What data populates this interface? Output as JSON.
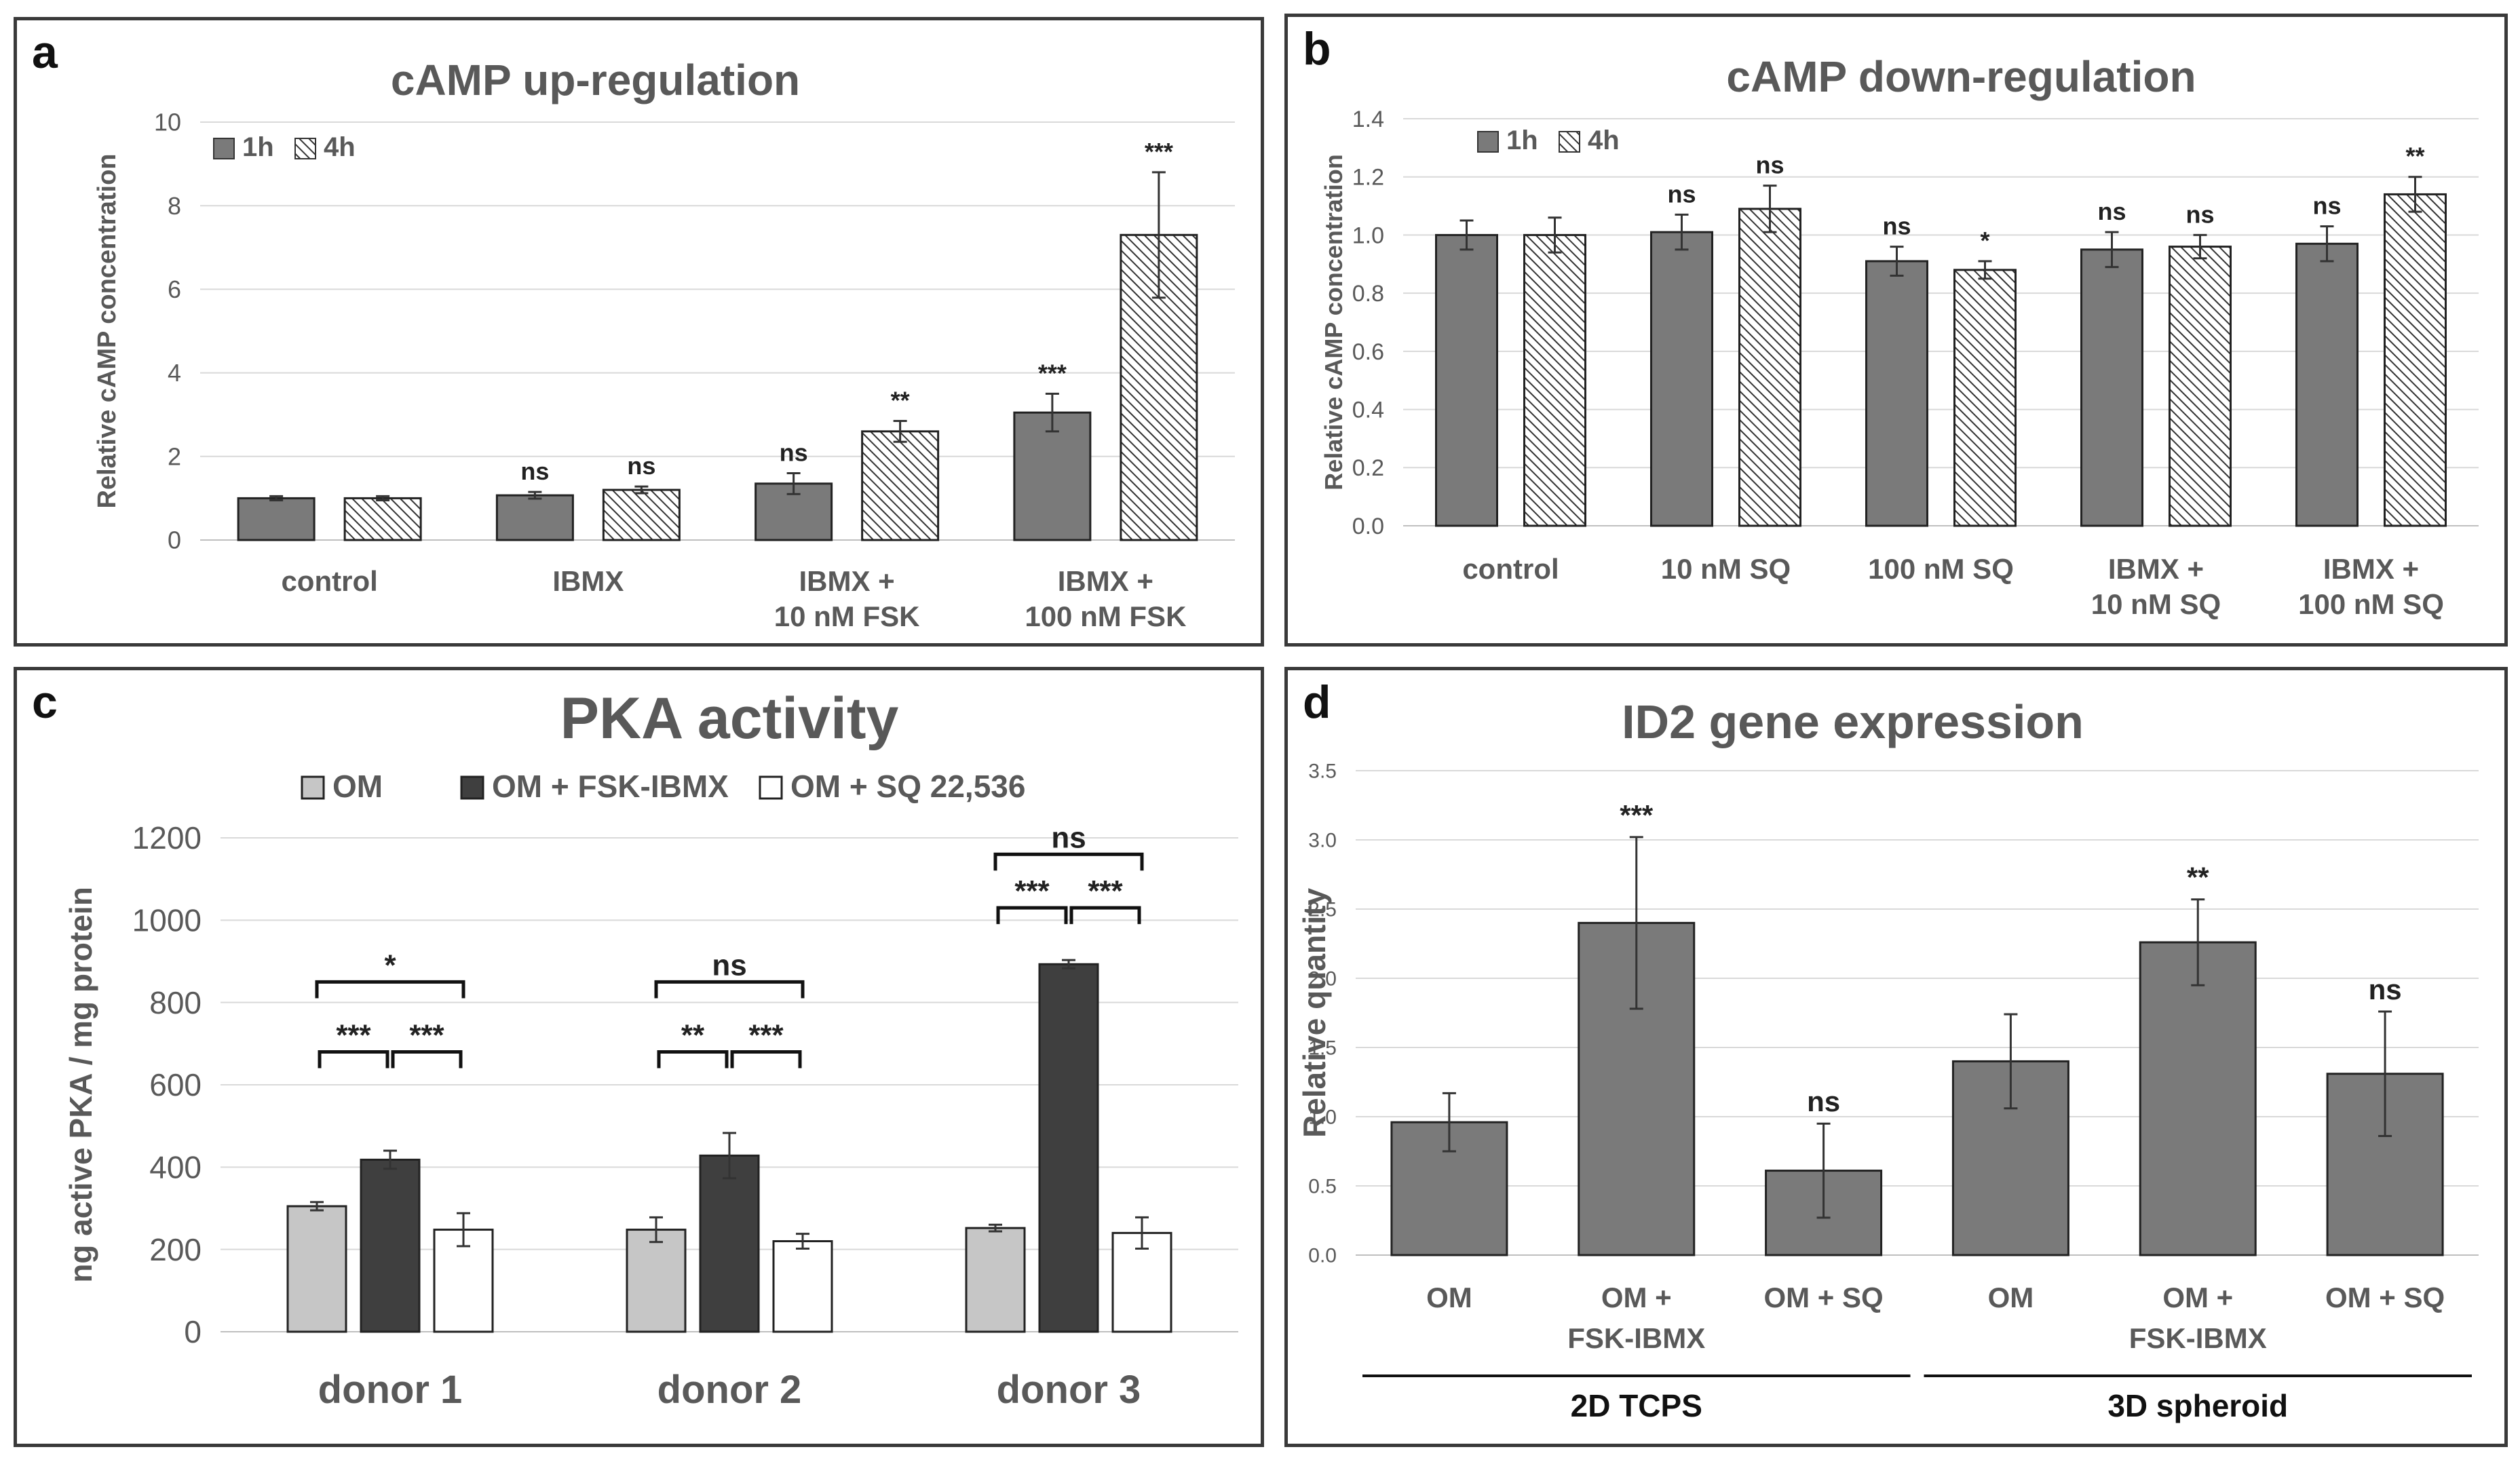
{
  "colors": {
    "bar_gray": "#7a7a7a",
    "bar_light": "#c6c6c6",
    "bar_dark": "#3f3f3f",
    "bar_white": "#ffffff",
    "axis_text": "#595959",
    "grid": "#d9d9d9"
  },
  "chart_data": [
    {
      "panel": "a",
      "type": "bar",
      "title": "cAMP up-regulation",
      "ylabel": "Relative cAMP concentration",
      "xlabel": "",
      "ylim": [
        0,
        10
      ],
      "yticks": [
        "0",
        "2",
        "4",
        "6",
        "8",
        "10"
      ],
      "legend": [
        "1h",
        "4h"
      ],
      "categories": [
        [
          "control"
        ],
        [
          "IBMX"
        ],
        [
          "IBMX +",
          "10 nM FSK"
        ],
        [
          "IBMX +",
          "100 nM FSK"
        ]
      ],
      "series": [
        {
          "name": "1h",
          "values": [
            1.0,
            1.07,
            1.35,
            3.05
          ],
          "errors": [
            0.05,
            0.08,
            0.25,
            0.45
          ],
          "labels": [
            "",
            "ns",
            "ns",
            "***"
          ]
        },
        {
          "name": "4h",
          "values": [
            1.0,
            1.2,
            2.6,
            7.3
          ],
          "errors": [
            0.05,
            0.08,
            0.25,
            1.5
          ],
          "labels": [
            "",
            "ns",
            "**",
            "***"
          ]
        }
      ]
    },
    {
      "panel": "b",
      "type": "bar",
      "title": "cAMP down-regulation",
      "ylabel": "Relative cAMP concentration",
      "xlabel": "",
      "ylim": [
        0,
        1.4
      ],
      "yticks": [
        "0.0",
        "0.2",
        "0.4",
        "0.6",
        "0.8",
        "1.0",
        "1.2",
        "1.4"
      ],
      "legend": [
        "1h",
        "4h"
      ],
      "categories": [
        [
          "control"
        ],
        [
          "10 nM SQ"
        ],
        [
          "100 nM SQ"
        ],
        [
          "IBMX +",
          "10 nM SQ"
        ],
        [
          "IBMX +",
          "100 nM SQ"
        ]
      ],
      "series": [
        {
          "name": "1h",
          "values": [
            1.0,
            1.01,
            0.91,
            0.95,
            0.97
          ],
          "errors": [
            0.05,
            0.06,
            0.05,
            0.06,
            0.06
          ],
          "labels": [
            "",
            "ns",
            "ns",
            "ns",
            "ns"
          ]
        },
        {
          "name": "4h",
          "values": [
            1.0,
            1.09,
            0.88,
            0.96,
            1.14
          ],
          "errors": [
            0.06,
            0.08,
            0.03,
            0.04,
            0.06
          ],
          "labels": [
            "",
            "ns",
            "*",
            "ns",
            "**"
          ]
        }
      ]
    },
    {
      "panel": "c",
      "type": "bar",
      "title": "PKA activity",
      "ylabel": "ng active PKA / mg protein",
      "xlabel": "",
      "ylim": [
        0,
        1200
      ],
      "yticks": [
        "0",
        "200",
        "400",
        "600",
        "800",
        "1000",
        "1200"
      ],
      "legend": [
        "OM",
        "OM + FSK-IBMX",
        "OM + SQ 22,536"
      ],
      "categories": [
        [
          "donor 1"
        ],
        [
          "donor 2"
        ],
        [
          "donor 3"
        ]
      ],
      "series": [
        {
          "name": "OM",
          "values": [
            305,
            248,
            252
          ],
          "errors": [
            10,
            30,
            8
          ]
        },
        {
          "name": "OM + FSK-IBMX",
          "values": [
            418,
            428,
            893
          ],
          "errors": [
            22,
            55,
            10
          ]
        },
        {
          "name": "OM + SQ 22,536",
          "values": [
            248,
            220,
            240
          ],
          "errors": [
            40,
            18,
            38
          ]
        }
      ],
      "brackets": [
        {
          "group": 0,
          "pairs": [
            {
              "from": 0,
              "to": 1,
              "label": "***",
              "y": 680
            },
            {
              "from": 1,
              "to": 2,
              "label": "***",
              "y": 680
            },
            {
              "from": 0,
              "to": 2,
              "label": "*",
              "y": 850
            }
          ]
        },
        {
          "group": 1,
          "pairs": [
            {
              "from": 0,
              "to": 1,
              "label": "**",
              "y": 680
            },
            {
              "from": 1,
              "to": 2,
              "label": "***",
              "y": 680
            },
            {
              "from": 0,
              "to": 2,
              "label": "ns",
              "y": 850
            }
          ]
        },
        {
          "group": 2,
          "pairs": [
            {
              "from": 0,
              "to": 1,
              "label": "***",
              "y": 1030
            },
            {
              "from": 1,
              "to": 2,
              "label": "***",
              "y": 1030
            },
            {
              "from": 0,
              "to": 2,
              "label": "ns",
              "y": 1160
            }
          ]
        }
      ]
    },
    {
      "panel": "d",
      "type": "bar",
      "title": "ID2 gene expression",
      "ylabel": "Relative quantity",
      "xlabel": "",
      "ylim": [
        0,
        3.5
      ],
      "yticks": [
        "0.0",
        "0.5",
        "1.0",
        "1.5",
        "2.0",
        "2.5",
        "3.0",
        "3.5"
      ],
      "categories": [
        [
          "OM"
        ],
        [
          "OM +",
          "FSK-IBMX"
        ],
        [
          "OM + SQ"
        ],
        [
          "OM"
        ],
        [
          "OM +",
          "FSK-IBMX"
        ],
        [
          "OM + SQ"
        ]
      ],
      "values": [
        0.96,
        2.4,
        0.61,
        1.4,
        2.26,
        1.31
      ],
      "errors": [
        0.21,
        0.62,
        0.34,
        0.34,
        0.31,
        0.45
      ],
      "labels": [
        "",
        "***",
        "ns",
        "",
        "**",
        "ns"
      ],
      "groups": [
        {
          "label": "2D TCPS",
          "from": 0,
          "to": 2
        },
        {
          "label": "3D spheroid",
          "from": 3,
          "to": 5
        }
      ]
    }
  ]
}
